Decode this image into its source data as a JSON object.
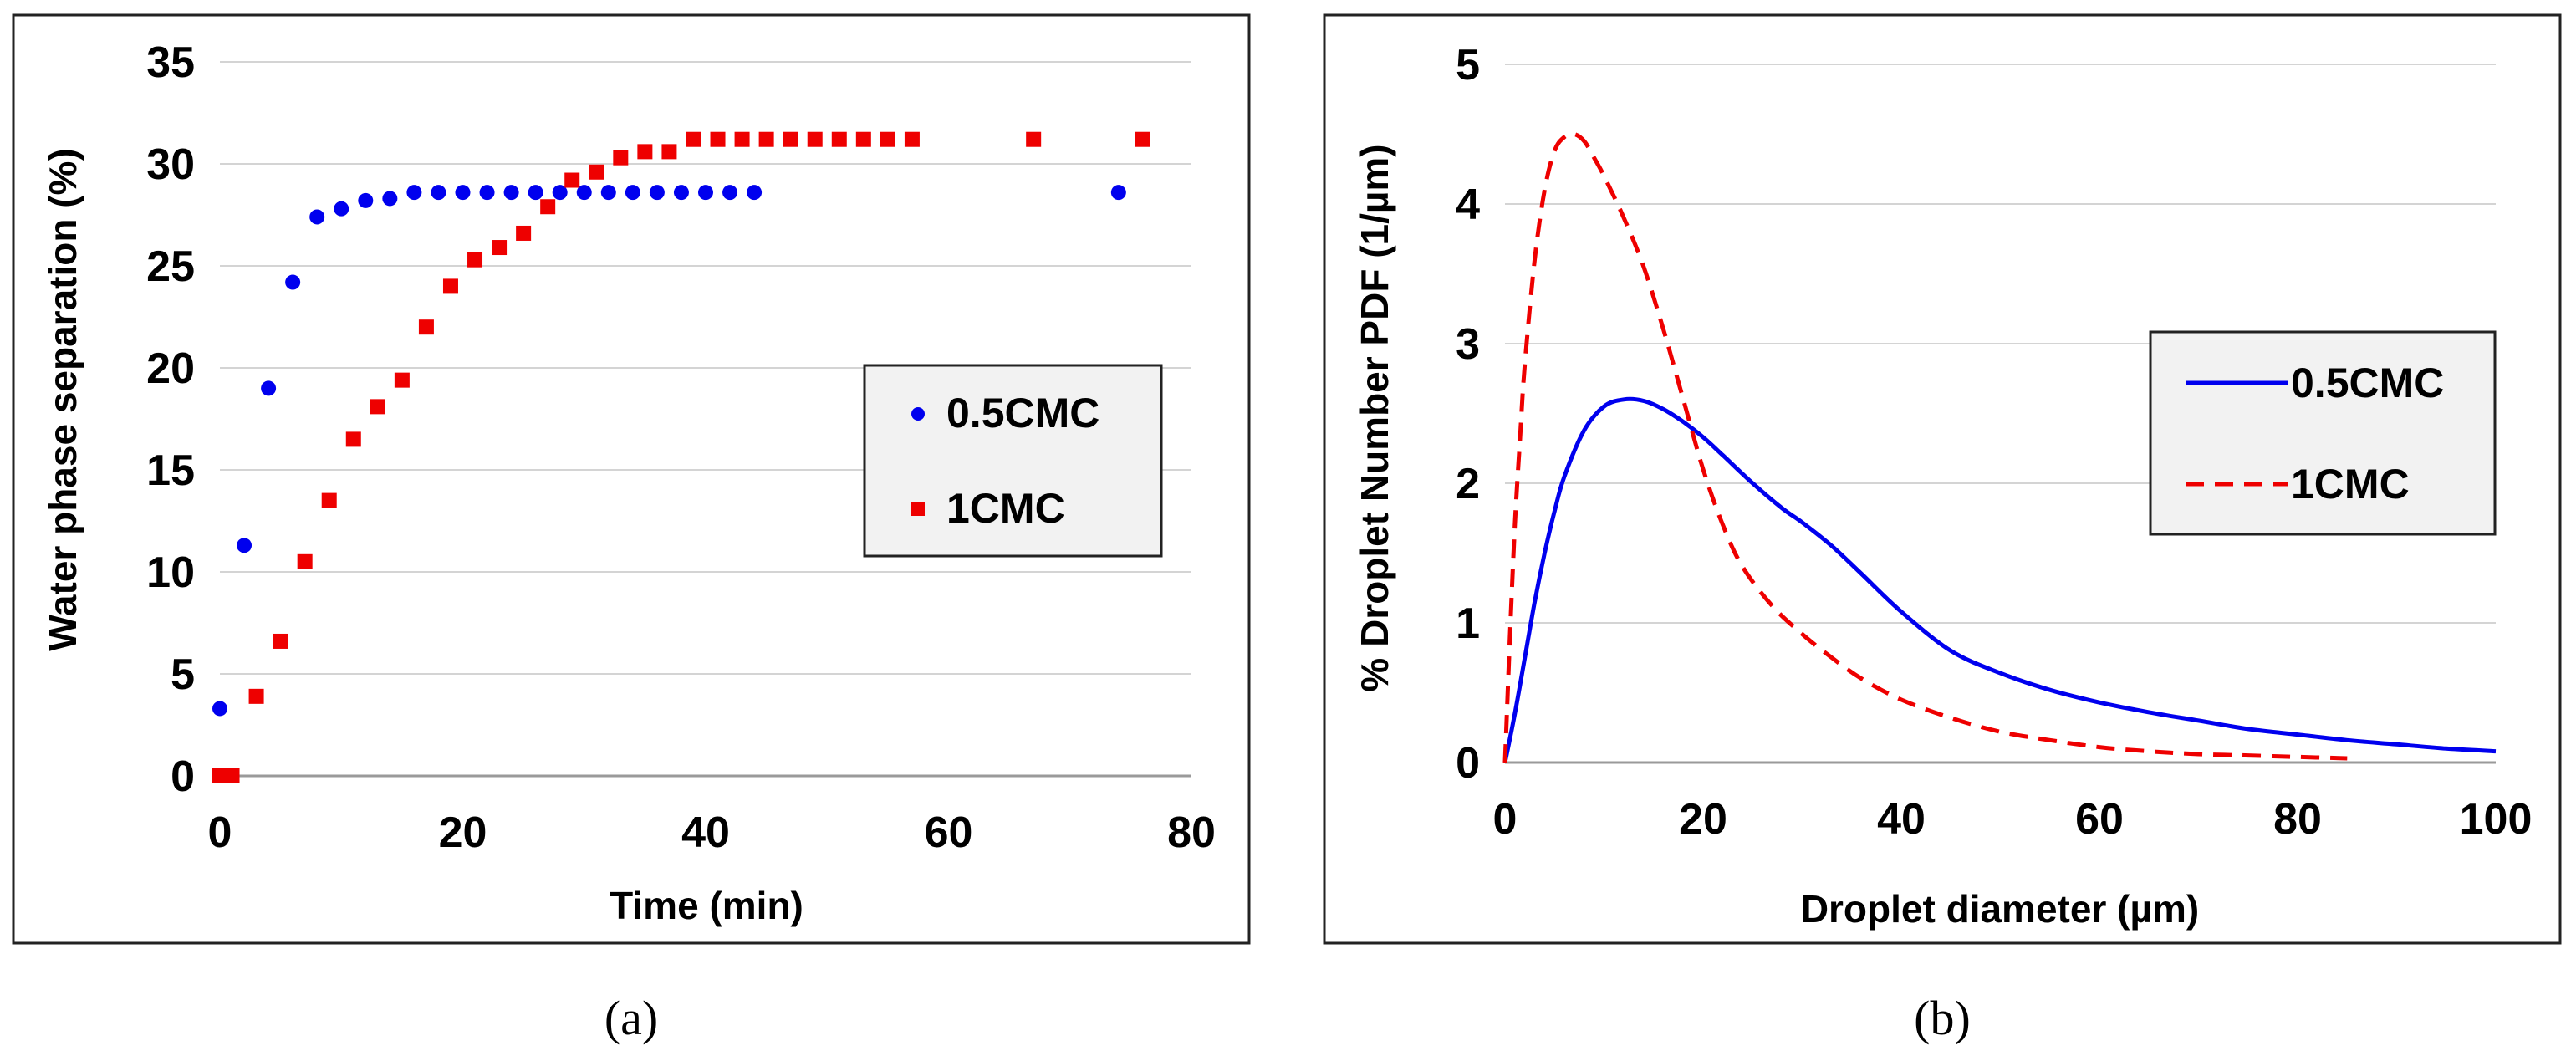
{
  "chart_data": [
    {
      "type": "scatter",
      "panel_label": "(a)",
      "title": "",
      "xlabel": "Time (min)",
      "ylabel": "Water phase separation (%)",
      "xlim": [
        0,
        80
      ],
      "ylim": [
        0,
        35
      ],
      "xticks": [
        "0",
        "20",
        "40",
        "60",
        "80"
      ],
      "yticks": [
        "0",
        "5",
        "10",
        "15",
        "20",
        "25",
        "30",
        "35"
      ],
      "grid": "horizontal",
      "legend_position": "right",
      "series": [
        {
          "name": "0.5CMC",
          "marker": "circle",
          "color": "#0000ee",
          "x": [
            0,
            2,
            4,
            6,
            8,
            10,
            12,
            14,
            16,
            18,
            20,
            22,
            24,
            26,
            28,
            30,
            32,
            34,
            36,
            38,
            40,
            42,
            44,
            74
          ],
          "y": [
            3.3,
            11.3,
            19.0,
            24.2,
            27.4,
            27.8,
            28.2,
            28.3,
            28.6,
            28.6,
            28.6,
            28.6,
            28.6,
            28.6,
            28.6,
            28.6,
            28.6,
            28.6,
            28.6,
            28.6,
            28.6,
            28.6,
            28.6,
            28.6
          ]
        },
        {
          "name": "1CMC",
          "marker": "square",
          "color": "#ee0000",
          "x": [
            0,
            1,
            3,
            5,
            7,
            9,
            11,
            13,
            15,
            17,
            19,
            21,
            23,
            25,
            27,
            29,
            31,
            33,
            35,
            37,
            39,
            41,
            43,
            45,
            47,
            49,
            51,
            53,
            55,
            57,
            67,
            76
          ],
          "y": [
            0,
            0,
            3.9,
            6.6,
            10.5,
            13.5,
            16.5,
            18.1,
            19.4,
            22.0,
            24.0,
            25.3,
            25.9,
            26.6,
            27.9,
            29.2,
            29.6,
            30.3,
            30.6,
            30.6,
            31.2,
            31.2,
            31.2,
            31.2,
            31.2,
            31.2,
            31.2,
            31.2,
            31.2,
            31.2,
            31.2,
            31.2
          ]
        }
      ]
    },
    {
      "type": "line",
      "panel_label": "(b)",
      "title": "",
      "xlabel": "Droplet diameter (µm)",
      "ylabel": "% Droplet Number PDF (1/µm)",
      "xlim": [
        0,
        100
      ],
      "ylim": [
        0,
        5
      ],
      "xticks": [
        "0",
        "20",
        "40",
        "60",
        "80",
        "100"
      ],
      "yticks": [
        "0",
        "1",
        "2",
        "3",
        "4",
        "5"
      ],
      "grid": "horizontal",
      "legend_position": "right",
      "series": [
        {
          "name": "0.5CMC",
          "style": "solid",
          "color": "#0000ee",
          "x": [
            0,
            1,
            2,
            3,
            4,
            5,
            6,
            8,
            10,
            12,
            14,
            16,
            18,
            20,
            22,
            25,
            28,
            30,
            33,
            36,
            40,
            45,
            50,
            55,
            60,
            65,
            70,
            75,
            80,
            85,
            90,
            95,
            100
          ],
          "y": [
            0,
            0.35,
            0.75,
            1.15,
            1.5,
            1.8,
            2.05,
            2.38,
            2.55,
            2.6,
            2.59,
            2.53,
            2.44,
            2.33,
            2.2,
            2.0,
            1.82,
            1.72,
            1.55,
            1.35,
            1.08,
            0.8,
            0.64,
            0.52,
            0.43,
            0.36,
            0.3,
            0.24,
            0.2,
            0.16,
            0.13,
            0.1,
            0.08
          ]
        },
        {
          "name": "1CMC",
          "style": "dashed",
          "color": "#ee0000",
          "x": [
            0,
            0.5,
            1,
            1.5,
            2,
            3,
            4,
            5,
            6,
            7,
            8,
            9,
            10,
            12,
            14,
            16,
            18,
            20,
            22,
            24,
            27,
            30,
            33,
            36,
            40,
            45,
            50,
            55,
            60,
            65,
            70,
            75,
            80,
            85
          ],
          "y": [
            0,
            0.9,
            1.7,
            2.3,
            2.85,
            3.6,
            4.1,
            4.38,
            4.48,
            4.5,
            4.45,
            4.33,
            4.2,
            3.9,
            3.55,
            3.1,
            2.6,
            2.1,
            1.7,
            1.4,
            1.12,
            0.92,
            0.75,
            0.6,
            0.45,
            0.32,
            0.22,
            0.16,
            0.11,
            0.08,
            0.06,
            0.05,
            0.04,
            0.03
          ]
        }
      ]
    }
  ]
}
